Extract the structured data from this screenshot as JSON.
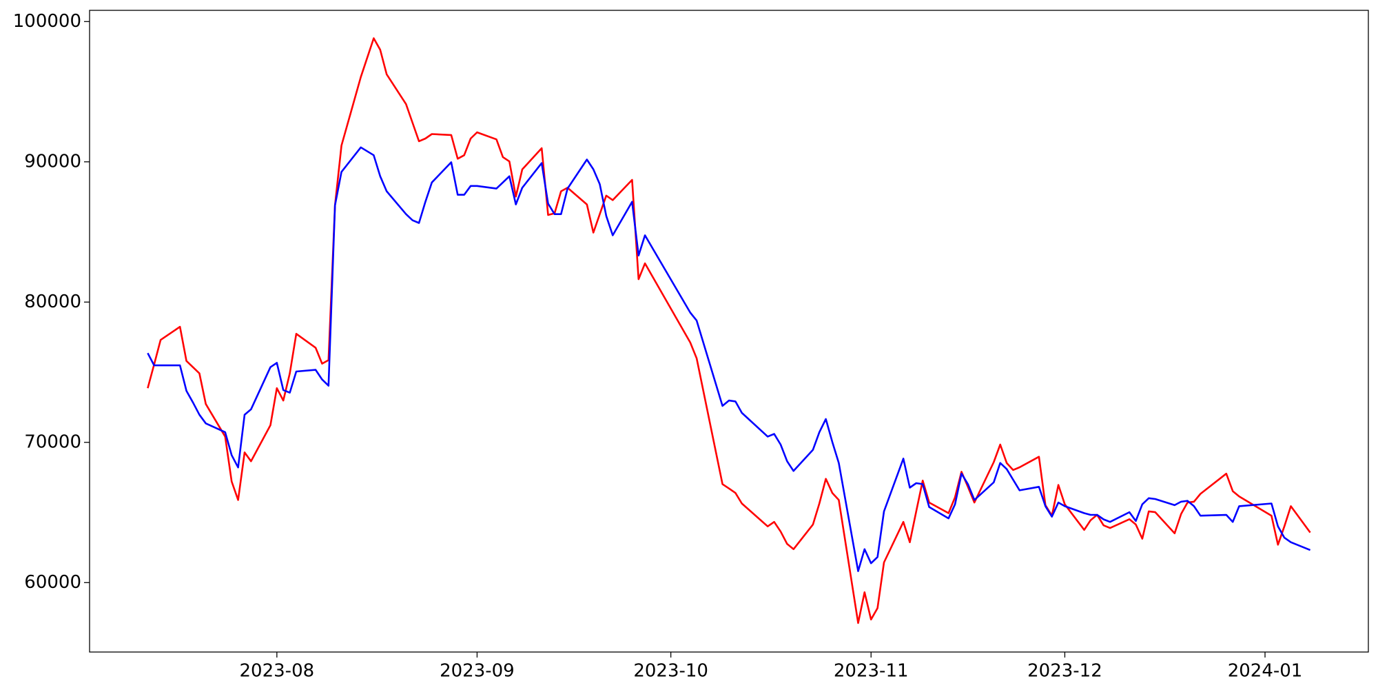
{
  "chart_data": {
    "type": "line",
    "x": [
      "2023-07-12",
      "2023-07-13",
      "2023-07-14",
      "2023-07-17",
      "2023-07-18",
      "2023-07-19",
      "2023-07-20",
      "2023-07-21",
      "2023-07-24",
      "2023-07-25",
      "2023-07-26",
      "2023-07-27",
      "2023-07-28",
      "2023-07-31",
      "2023-08-01",
      "2023-08-02",
      "2023-08-03",
      "2023-08-04",
      "2023-08-07",
      "2023-08-08",
      "2023-08-09",
      "2023-08-10",
      "2023-08-11",
      "2023-08-14",
      "2023-08-16",
      "2023-08-17",
      "2023-08-18",
      "2023-08-21",
      "2023-08-22",
      "2023-08-23",
      "2023-08-24",
      "2023-08-25",
      "2023-08-28",
      "2023-08-29",
      "2023-08-30",
      "2023-08-31",
      "2023-09-01",
      "2023-09-04",
      "2023-09-05",
      "2023-09-06",
      "2023-09-07",
      "2023-09-08",
      "2023-09-11",
      "2023-09-12",
      "2023-09-13",
      "2023-09-14",
      "2023-09-15",
      "2023-09-18",
      "2023-09-19",
      "2023-09-20",
      "2023-09-21",
      "2023-09-22",
      "2023-09-25",
      "2023-09-26",
      "2023-09-27",
      "2023-10-04",
      "2023-10-05",
      "2023-10-09",
      "2023-10-10",
      "2023-10-11",
      "2023-10-12",
      "2023-10-16",
      "2023-10-17",
      "2023-10-18",
      "2023-10-19",
      "2023-10-20",
      "2023-10-23",
      "2023-10-24",
      "2023-10-25",
      "2023-10-26",
      "2023-10-27",
      "2023-10-30",
      "2023-10-31",
      "2023-11-01",
      "2023-11-02",
      "2023-11-03",
      "2023-11-06",
      "2023-11-07",
      "2023-11-08",
      "2023-11-09",
      "2023-11-10",
      "2023-11-13",
      "2023-11-14",
      "2023-11-15",
      "2023-11-16",
      "2023-11-17",
      "2023-11-20",
      "2023-11-21",
      "2023-11-22",
      "2023-11-23",
      "2023-11-24",
      "2023-11-27",
      "2023-11-28",
      "2023-11-29",
      "2023-11-30",
      "2023-12-01",
      "2023-12-04",
      "2023-12-05",
      "2023-12-06",
      "2023-12-07",
      "2023-12-08",
      "2023-12-11",
      "2023-12-12",
      "2023-12-13",
      "2023-12-14",
      "2023-12-15",
      "2023-12-18",
      "2023-12-19",
      "2023-12-20",
      "2023-12-21",
      "2023-12-22",
      "2023-12-26",
      "2023-12-27",
      "2023-12-28",
      "2024-01-02",
      "2024-01-03",
      "2024-01-04",
      "2024-01-05",
      "2024-01-08"
    ],
    "series": [
      {
        "color": "#ff0000",
        "values": [
          73860,
          75550,
          77300,
          78240,
          75800,
          75360,
          74920,
          72730,
          70410,
          67210,
          65890,
          69280,
          68650,
          71220,
          73860,
          72980,
          74920,
          77740,
          76740,
          75610,
          75860,
          86900,
          91160,
          96050,
          98810,
          97990,
          96240,
          94110,
          92790,
          91470,
          91660,
          91980,
          91910,
          90220,
          90470,
          91660,
          92100,
          91600,
          90340,
          90030,
          87520,
          89460,
          90970,
          86210,
          86330,
          87900,
          88150,
          86960,
          84950,
          86270,
          87590,
          87270,
          88710,
          81630,
          82760,
          77120,
          75990,
          67020,
          66710,
          66390,
          65640,
          64010,
          64330,
          63640,
          62760,
          62380,
          64140,
          65640,
          67400,
          66390,
          65890,
          57120,
          59310,
          57370,
          58180,
          61440,
          64330,
          62880,
          65080,
          67270,
          65710,
          64950,
          66080,
          67900,
          66830,
          65710,
          68590,
          69840,
          68530,
          68030,
          68220,
          68970,
          65520,
          64770,
          66960,
          65580,
          63760,
          64450,
          64830,
          64080,
          63890,
          64520,
          64140,
          63130,
          65080,
          65020,
          63510,
          64890,
          65710,
          65770,
          66330,
          67770,
          66520,
          66140,
          64770,
          62700,
          64010,
          65450,
          63570
        ]
      },
      {
        "color": "#0000ff",
        "values": [
          76360,
          75490,
          75490,
          75490,
          73670,
          72850,
          71970,
          71350,
          70720,
          69090,
          68210,
          71970,
          72350,
          75360,
          75670,
          73730,
          73540,
          75050,
          75170,
          74480,
          74040,
          86900,
          89280,
          91030,
          90470,
          88970,
          87900,
          86270,
          85830,
          85640,
          87150,
          88530,
          89970,
          87650,
          87650,
          88280,
          88280,
          88090,
          88530,
          88970,
          86960,
          88150,
          89910,
          87020,
          86270,
          86270,
          88090,
          90160,
          89470,
          88400,
          86140,
          84760,
          87150,
          83320,
          84760,
          79250,
          78680,
          72600,
          72980,
          72920,
          72100,
          70410,
          70600,
          69840,
          68650,
          67960,
          69470,
          70720,
          71660,
          70030,
          68530,
          60820,
          62380,
          61380,
          61820,
          65080,
          68840,
          66770,
          67090,
          67020,
          65390,
          64580,
          65580,
          67770,
          67020,
          65890,
          67150,
          68530,
          68090,
          67340,
          66580,
          66830,
          65450,
          64700,
          65710,
          65450,
          64950,
          64830,
          64830,
          64510,
          64330,
          65020,
          64390,
          65580,
          66020,
          65960,
          65520,
          65770,
          65830,
          65450,
          64770,
          64830,
          64330,
          65450,
          65640,
          64010,
          63200,
          62880,
          62320
        ]
      }
    ],
    "xlim": [
      "2023-07-03",
      "2024-01-17"
    ],
    "xticks": [
      "2023-08",
      "2023-09",
      "2023-10",
      "2023-11",
      "2023-12",
      "2024-01"
    ],
    "ylim": [
      55050,
      100800
    ],
    "yticks": [
      60000,
      70000,
      80000,
      90000,
      100000
    ],
    "grid": false
  }
}
